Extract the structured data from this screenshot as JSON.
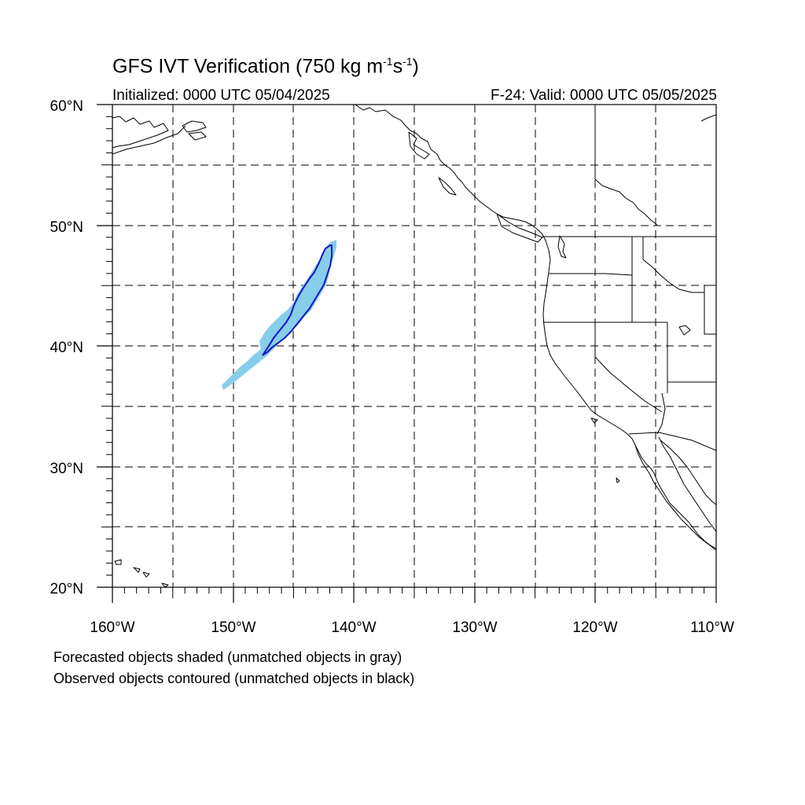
{
  "title": {
    "prefix": "GFS IVT Verification (750 kg m",
    "exp1": "-1",
    "mid": "s",
    "exp2": "-1",
    "suffix": ")"
  },
  "initialized": "Initialized: 0000 UTC 05/04/2025",
  "valid": "F-24: Valid: 0000 UTC 05/05/2025",
  "captions": [
    "Forecasted objects shaded (unmatched objects in gray)",
    "Observed objects contoured (unmatched objects in black)"
  ],
  "lat_labels": [
    "60°N",
    "50°N",
    "40°N",
    "30°N",
    "20°N"
  ],
  "lon_labels": [
    "160°W",
    "150°W",
    "140°W",
    "130°W",
    "120°W",
    "110°W"
  ],
  "colors": {
    "forecast_fill": "#87ceeb",
    "observed_contour": "#1515c8",
    "grid": "#000000",
    "coast": "#000000"
  },
  "map": {
    "lon_range": [
      -160,
      -110
    ],
    "lat_range": [
      20,
      60
    ],
    "grid_spacing_deg": 5,
    "projection": "cylindrical equidistant"
  }
}
